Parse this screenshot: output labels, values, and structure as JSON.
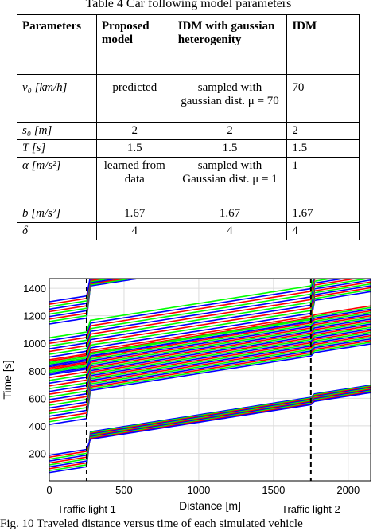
{
  "caption": "Table 4  Car following model parameters",
  "table": {
    "headers": [
      "Parameters",
      "Proposed model",
      "IDM with gaussian heterogenity",
      "IDM"
    ],
    "rows": [
      {
        "param": "v₀ [km/h]",
        "c1": "predicted",
        "c2": "sampled with gaussian dist. μ = 70",
        "c3": "70"
      },
      {
        "param": "s₀ [m]",
        "c1": "2",
        "c2": "2",
        "c3": "2"
      },
      {
        "param": "T [s]",
        "c1": "1.5",
        "c2": "1.5",
        "c3": "1.5"
      },
      {
        "param": "α [m/s²]",
        "c1": "learned from data",
        "c2": "sampled with Gaussian dist. μ = 1",
        "c3": "1"
      },
      {
        "param": "b [m/s²]",
        "c1": "1.67",
        "c2": "1.67",
        "c3": "1.67"
      },
      {
        "param": "δ",
        "c1": "4",
        "c2": "4",
        "c3": "4"
      }
    ]
  },
  "chart_data": {
    "type": "line",
    "xlabel": "Distance [m]",
    "ylabel": "Time [s]",
    "xlim": [
      0,
      2150
    ],
    "ylim": [
      0,
      1470
    ],
    "xticks": [
      0,
      500,
      1000,
      1500,
      2000
    ],
    "yticks": [
      200,
      400,
      600,
      800,
      1000,
      1200,
      1400
    ],
    "grid": true,
    "colors": [
      "#0000ff",
      "#00ff00",
      "#ff0000"
    ],
    "traffic_lights": [
      {
        "label": "Traffic light 1",
        "x": 250
      },
      {
        "label": "Traffic light 2",
        "x": 1750
      }
    ],
    "groups": [
      {
        "t0": 60,
        "n": 10,
        "spacing": 14
      },
      {
        "t0": 410,
        "n": 24,
        "spacing": 20
      },
      {
        "t0": 780,
        "n": 14,
        "spacing": 20
      },
      {
        "t0": 1140,
        "n": 10,
        "spacing": 18
      }
    ]
  },
  "figure_caption": "Fig. 10  Traveled distance versus time of each simulated vehicle"
}
